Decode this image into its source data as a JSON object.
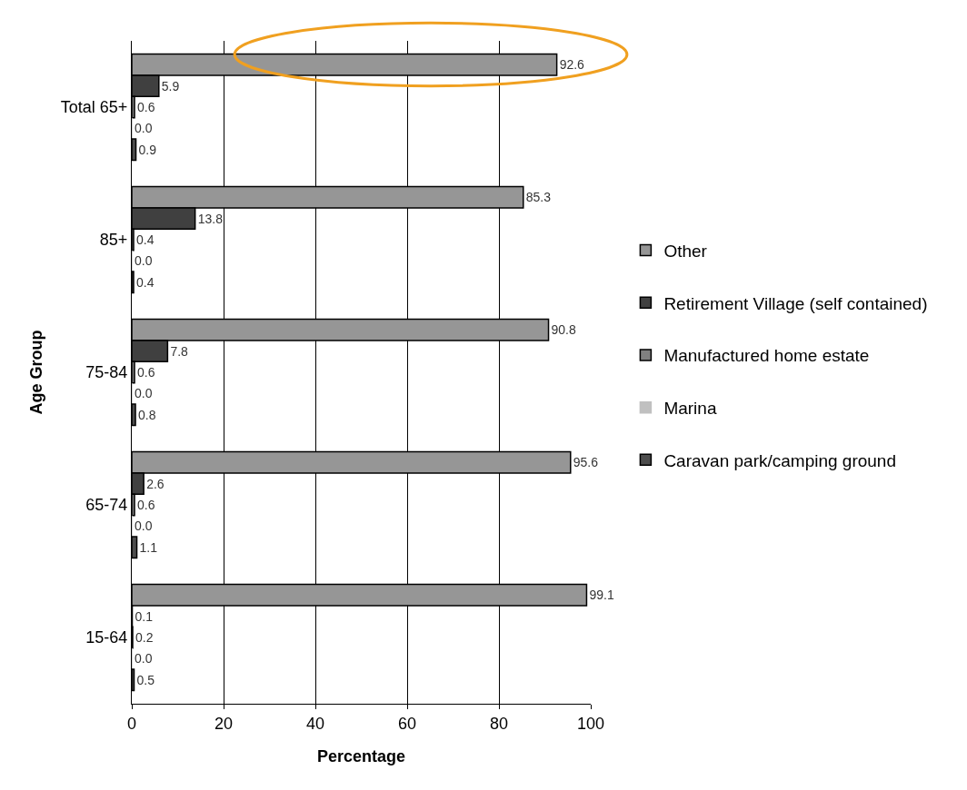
{
  "chart_data": {
    "type": "bar",
    "orientation": "horizontal",
    "xlabel": "Percentage",
    "ylabel": "Age Group",
    "categories": [
      "Total 65+",
      "85+",
      "75-84",
      "65-74",
      "15-64"
    ],
    "series": [
      {
        "name": "Other",
        "color": "#969696",
        "values": [
          92.6,
          85.3,
          90.8,
          95.6,
          99.1
        ],
        "value_labels": [
          "92.6",
          "85.3",
          "90.8",
          "95.6",
          "99.1"
        ]
      },
      {
        "name": "Retirement Village (self contained)",
        "color": "#404040",
        "values": [
          5.9,
          13.8,
          7.8,
          2.6,
          0.1
        ],
        "value_labels": [
          "5.9",
          "13.8",
          "7.8",
          "2.6",
          "0.1"
        ]
      },
      {
        "name": "Manufactured home estate",
        "color": "#808080",
        "values": [
          0.6,
          0.4,
          0.6,
          0.6,
          0.2
        ],
        "value_labels": [
          "0.6",
          "0.4",
          "0.6",
          "0.6",
          "0.2"
        ]
      },
      {
        "name": "Marina",
        "color": "#c0c0c0",
        "values": [
          0,
          0,
          0,
          0,
          0
        ],
        "value_labels": [
          "0.0",
          "0.0",
          "0.0",
          "0.0",
          "0.0"
        ]
      },
      {
        "name": "Caravan park/camping ground",
        "color": "#4d4d4d",
        "values": [
          0.9,
          0.4,
          0.8,
          1.1,
          0.5
        ],
        "value_labels": [
          "0.9",
          "0.4",
          "0.8",
          "1.1",
          "0.5"
        ]
      }
    ],
    "xlim": [
      0,
      100
    ],
    "xticks": [
      0,
      20,
      40,
      60,
      80,
      100
    ],
    "grid": "x",
    "legend": "right"
  }
}
